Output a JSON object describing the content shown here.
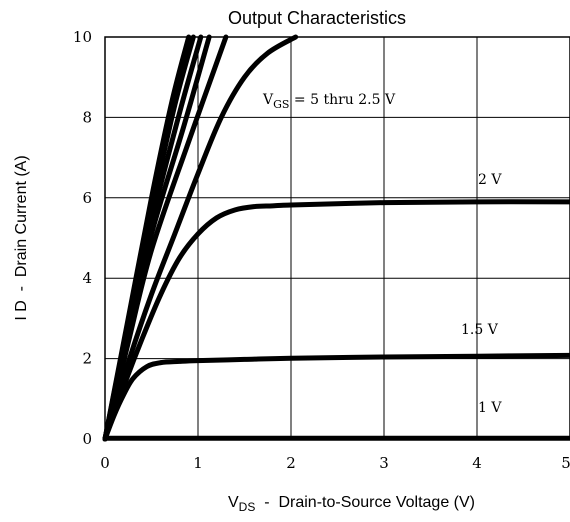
{
  "chart_data": {
    "type": "line",
    "title": "Output Characteristics",
    "xlabel": {
      "main": "V",
      "sub": "DS",
      "rest": "  -  Drain-to-Source Voltage (V)"
    },
    "ylabel": "I D  -  Drain Current (A)",
    "xlim": [
      0,
      5
    ],
    "ylim": [
      0,
      10
    ],
    "x_ticks": [
      "0",
      "1",
      "2",
      "3",
      "4",
      "5"
    ],
    "y_ticks": [
      "0",
      "2",
      "4",
      "6",
      "8",
      "10"
    ],
    "grid": true,
    "annotations": {
      "vgs_prefix": "V",
      "vgs_sub": "GS",
      "vgs_rest": " = 5 thru 2.5 V",
      "label_2v": "2 V",
      "label_1_5v": "1.5 V",
      "label_1v": "1 V"
    },
    "series": [
      {
        "points": [
          [
            0,
            0
          ],
          [
            0.25,
            3
          ],
          [
            0.5,
            6
          ],
          [
            0.72,
            8.4
          ],
          [
            0.9,
            10
          ]
        ]
      },
      {
        "points": [
          [
            0,
            0
          ],
          [
            0.25,
            2.9
          ],
          [
            0.5,
            5.7
          ],
          [
            0.75,
            8.3
          ],
          [
            0.95,
            10
          ]
        ]
      },
      {
        "points": [
          [
            0,
            0
          ],
          [
            0.25,
            2.7
          ],
          [
            0.5,
            5.4
          ],
          [
            0.8,
            8.1
          ],
          [
            1.03,
            10
          ]
        ]
      },
      {
        "points": [
          [
            0,
            0
          ],
          [
            0.25,
            2.6
          ],
          [
            0.5,
            5.1
          ],
          [
            0.85,
            7.8
          ],
          [
            1.12,
            10
          ]
        ]
      },
      {
        "points": [
          [
            0,
            0
          ],
          [
            0.25,
            2.4
          ],
          [
            0.5,
            4.7
          ],
          [
            0.9,
            7.4
          ],
          [
            1.3,
            10
          ]
        ]
      },
      {
        "points": [
          [
            0,
            0
          ],
          [
            0.25,
            1.9
          ],
          [
            0.5,
            3.6
          ],
          [
            0.75,
            5.1
          ],
          [
            1.0,
            6.6
          ],
          [
            1.25,
            8.0
          ],
          [
            1.5,
            9.0
          ],
          [
            1.75,
            9.6
          ],
          [
            2.05,
            10.0
          ]
        ]
      },
      {
        "points": [
          [
            0,
            0
          ],
          [
            0.2,
            1.3
          ],
          [
            0.4,
            2.5
          ],
          [
            0.6,
            3.6
          ],
          [
            0.8,
            4.5
          ],
          [
            1.0,
            5.1
          ],
          [
            1.2,
            5.5
          ],
          [
            1.4,
            5.7
          ],
          [
            1.6,
            5.78
          ],
          [
            1.8,
            5.8
          ],
          [
            2.0,
            5.82
          ],
          [
            3.0,
            5.88
          ],
          [
            4.0,
            5.9
          ],
          [
            5.0,
            5.9
          ]
        ]
      },
      {
        "points": [
          [
            0,
            0
          ],
          [
            0.1,
            0.6
          ],
          [
            0.2,
            1.1
          ],
          [
            0.3,
            1.5
          ],
          [
            0.45,
            1.8
          ],
          [
            0.6,
            1.9
          ],
          [
            0.8,
            1.93
          ],
          [
            1.0,
            1.95
          ],
          [
            1.5,
            1.98
          ],
          [
            2.0,
            2.01
          ],
          [
            3.0,
            2.04
          ],
          [
            4.0,
            2.06
          ],
          [
            5.0,
            2.08
          ]
        ]
      },
      {
        "points": [
          [
            0,
            0.02
          ],
          [
            5,
            0.02
          ]
        ]
      }
    ]
  }
}
